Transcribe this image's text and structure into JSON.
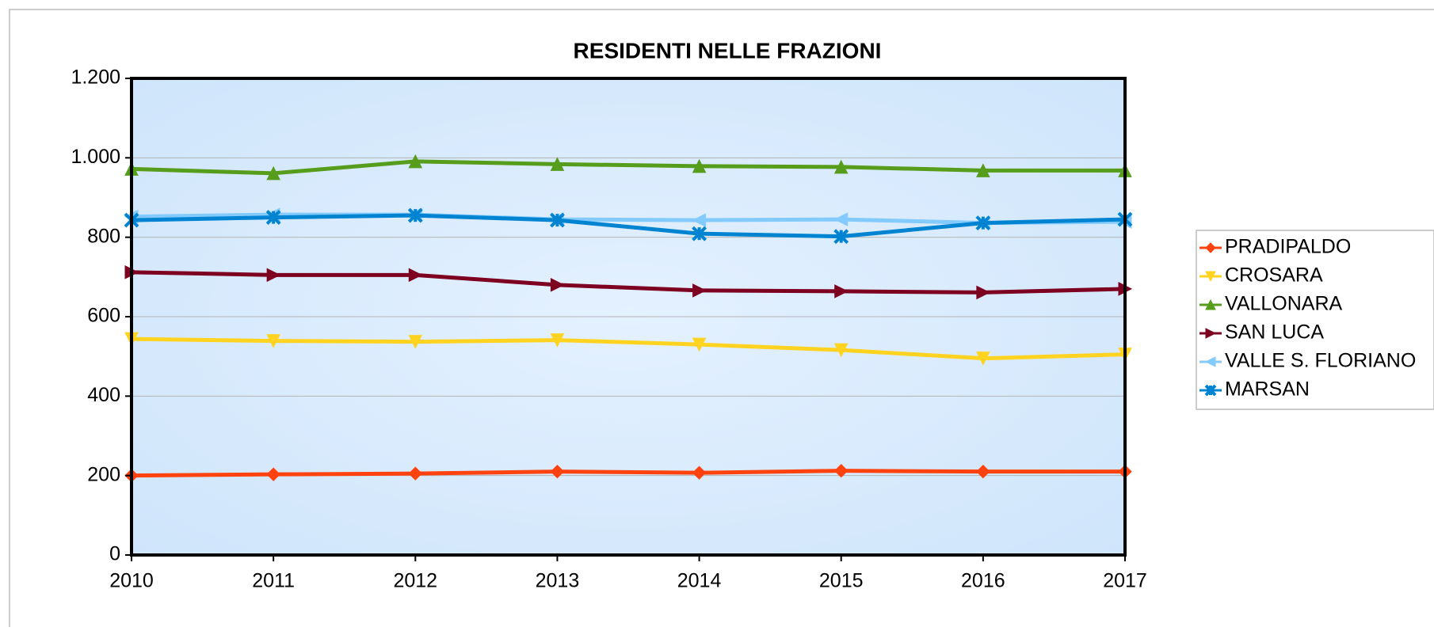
{
  "chart_data": {
    "type": "line",
    "title": "RESIDENTI NELLE FRAZIONI",
    "x": [
      2010,
      2011,
      2012,
      2013,
      2014,
      2015,
      2016,
      2017
    ],
    "xlim": [
      2010,
      2017
    ],
    "xticks": [
      2010,
      2011,
      2012,
      2013,
      2014,
      2015,
      2016,
      2017
    ],
    "ylim": [
      0,
      1200
    ],
    "yticks": [
      0,
      200,
      400,
      600,
      800,
      {
        "value": 1000,
        "label": "1.000"
      },
      {
        "value": 1200,
        "label": "1.200"
      }
    ],
    "grid": true,
    "legend": "right",
    "series": [
      {
        "name": "PRADIPALDO",
        "color": "#ff420e",
        "marker": "diamond",
        "values": [
          200,
          203,
          205,
          210,
          207,
          212,
          210,
          210
        ]
      },
      {
        "name": "CROSARA",
        "color": "#ffd320",
        "marker": "triangle-down",
        "values": [
          544,
          539,
          537,
          541,
          530,
          516,
          495,
          505
        ]
      },
      {
        "name": "VALLONARA",
        "color": "#579d1c",
        "marker": "triangle-up",
        "values": [
          972,
          961,
          991,
          984,
          979,
          977,
          968,
          968
        ]
      },
      {
        "name": "SAN LUCA",
        "color": "#7e0021",
        "marker": "triangle-right",
        "values": [
          712,
          705,
          705,
          680,
          666,
          664,
          661,
          670
        ]
      },
      {
        "name": "VALLE S. FLORIANO",
        "color": "#83caff",
        "marker": "triangle-left",
        "values": [
          852,
          857,
          857,
          845,
          843,
          845,
          836,
          839
        ]
      },
      {
        "name": "MARSAN",
        "color": "#0084d1",
        "marker": "star",
        "values": [
          843,
          850,
          855,
          843,
          809,
          802,
          836,
          845
        ]
      }
    ]
  }
}
